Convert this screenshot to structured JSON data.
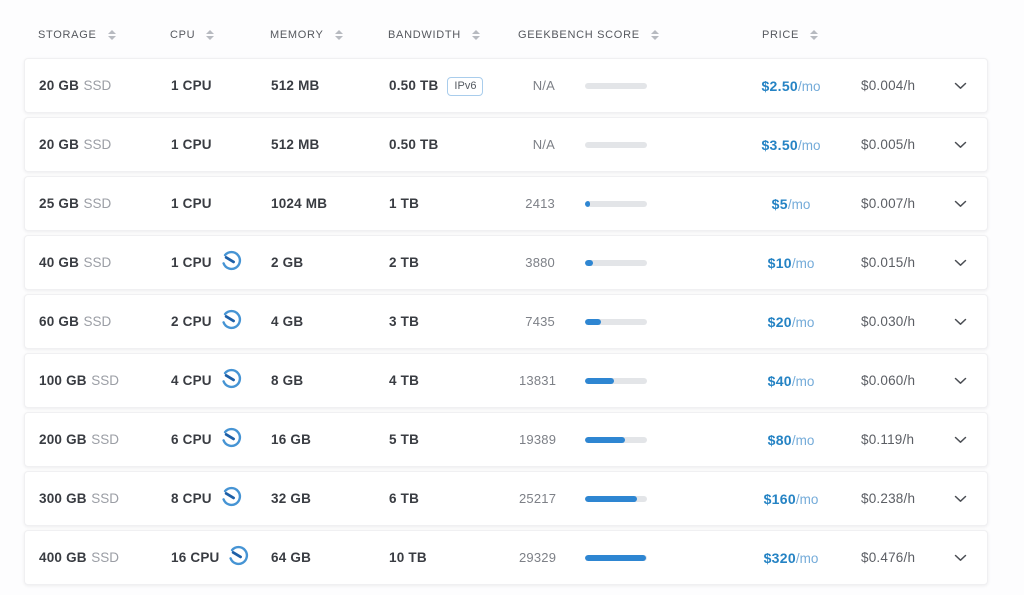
{
  "header": {
    "columns": [
      {
        "label": "STORAGE"
      },
      {
        "label": "CPU"
      },
      {
        "label": "MEMORY"
      },
      {
        "label": "BANDWIDTH"
      },
      {
        "label": "GEEKBENCH SCORE"
      },
      {
        "label": "PRICE"
      }
    ]
  },
  "icons": {
    "sort": "sort-up-down-arrows",
    "gauge": "speedometer-gauge",
    "expand": "chevron-down"
  },
  "colors": {
    "price_blue": "#2583c4",
    "price_suffix_blue": "#74abd9",
    "bar_fill": "#2e86d2",
    "bar_track": "#e3e5e8",
    "ipv6_border": "#a9cdec"
  },
  "score_bar_max": 30000,
  "rows": [
    {
      "storage": "20 GB",
      "storage_type": "SSD",
      "cpu": "1 CPU",
      "memory": "512 MB",
      "bandwidth": "0.50 TB",
      "ipv6": "IPv6",
      "score": "N/A",
      "score_pct": 0,
      "price_monthly": "$2.50",
      "monthly_suffix": "/mo",
      "price_hourly": "$0.004/h"
    },
    {
      "storage": "20 GB",
      "storage_type": "SSD",
      "cpu": "1 CPU",
      "memory": "512 MB",
      "bandwidth": "0.50 TB",
      "score": "N/A",
      "score_pct": 0,
      "price_monthly": "$3.50",
      "monthly_suffix": "/mo",
      "price_hourly": "$0.005/h"
    },
    {
      "storage": "25 GB",
      "storage_type": "SSD",
      "cpu": "1 CPU",
      "memory": "1024 MB",
      "bandwidth": "1 TB",
      "score": "2413",
      "score_pct": 8,
      "price_monthly": "$5",
      "monthly_suffix": "/mo",
      "price_hourly": "$0.007/h"
    },
    {
      "storage": "40 GB",
      "storage_type": "SSD",
      "cpu": "1 CPU",
      "memory": "2 GB",
      "bandwidth": "2 TB",
      "score": "3880",
      "score_pct": 13,
      "price_monthly": "$10",
      "monthly_suffix": "/mo",
      "price_hourly": "$0.015/h"
    },
    {
      "storage": "60 GB",
      "storage_type": "SSD",
      "cpu": "2 CPU",
      "memory": "4 GB",
      "bandwidth": "3 TB",
      "score": "7435",
      "score_pct": 25,
      "price_monthly": "$20",
      "monthly_suffix": "/mo",
      "price_hourly": "$0.030/h"
    },
    {
      "storage": "100 GB",
      "storage_type": "SSD",
      "cpu": "4 CPU",
      "memory": "8 GB",
      "bandwidth": "4 TB",
      "score": "13831",
      "score_pct": 46,
      "price_monthly": "$40",
      "monthly_suffix": "/mo",
      "price_hourly": "$0.060/h"
    },
    {
      "storage": "200 GB",
      "storage_type": "SSD",
      "cpu": "6 CPU",
      "memory": "16 GB",
      "bandwidth": "5 TB",
      "score": "19389",
      "score_pct": 65,
      "price_monthly": "$80",
      "monthly_suffix": "/mo",
      "price_hourly": "$0.119/h"
    },
    {
      "storage": "300 GB",
      "storage_type": "SSD",
      "cpu": "8 CPU",
      "memory": "32 GB",
      "bandwidth": "6 TB",
      "score": "25217",
      "score_pct": 84,
      "price_monthly": "$160",
      "monthly_suffix": "/mo",
      "price_hourly": "$0.238/h"
    },
    {
      "storage": "400 GB",
      "storage_type": "SSD",
      "cpu": "16 CPU",
      "memory": "64 GB",
      "bandwidth": "10 TB",
      "score": "29329",
      "score_pct": 98,
      "price_monthly": "$320",
      "monthly_suffix": "/mo",
      "price_hourly": "$0.476/h"
    }
  ]
}
